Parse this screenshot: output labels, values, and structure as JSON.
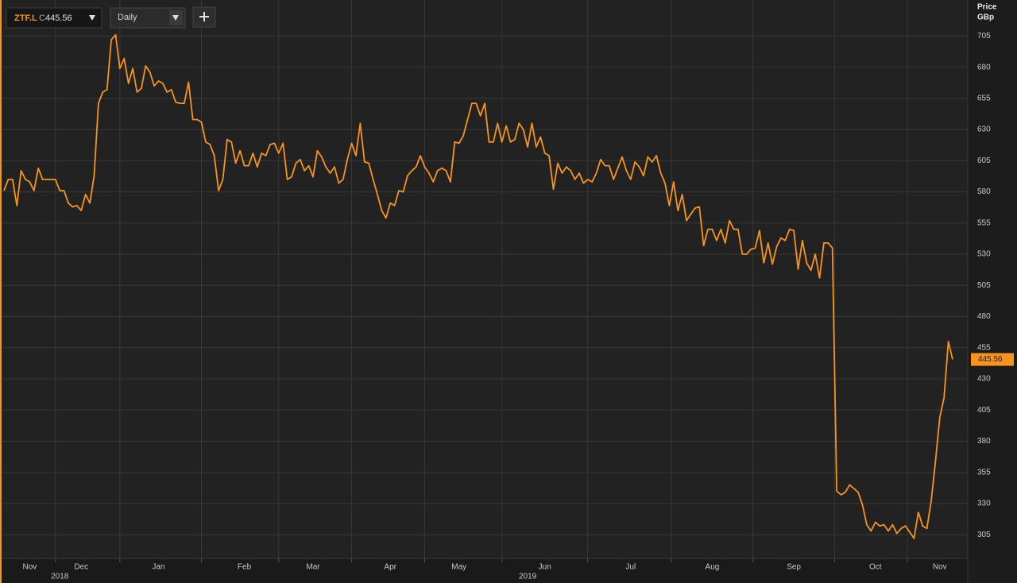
{
  "toolbar": {
    "close_label": "C",
    "interval": "Daily"
  },
  "chart_data": {
    "type": "line",
    "ylabel_lines": [
      "Price",
      "GBp"
    ],
    "categories": [
      null,
      null,
      null,
      null,
      null,
      null,
      "Nov",
      null,
      null,
      null,
      null,
      null,
      null,
      null,
      null,
      null,
      null,
      null,
      "Dec",
      null,
      null,
      null,
      null,
      null,
      null,
      null,
      null,
      null,
      null,
      null,
      null,
      null,
      null,
      null,
      null,
      null,
      "Jan",
      null,
      null,
      null,
      null,
      null,
      null,
      null,
      null,
      null,
      null,
      null,
      null,
      null,
      null,
      null,
      null,
      null,
      null,
      null,
      "Feb",
      null,
      null,
      null,
      null,
      null,
      null,
      null,
      null,
      null,
      null,
      null,
      null,
      null,
      null,
      null,
      "Mar",
      null,
      null,
      null,
      null,
      null,
      null,
      null,
      null,
      null,
      null,
      null,
      null,
      null,
      null,
      null,
      null,
      null,
      "Apr",
      null,
      null,
      null,
      null,
      null,
      null,
      null,
      null,
      null,
      null,
      null,
      null,
      null,
      null,
      null,
      "May",
      null,
      null,
      null,
      null,
      null,
      null,
      null,
      null,
      null,
      null,
      null,
      null,
      null,
      null,
      null,
      null,
      null,
      null,
      null,
      "Jun",
      null,
      null,
      null,
      null,
      null,
      null,
      null,
      null,
      null,
      null,
      null,
      null,
      null,
      null,
      null,
      null,
      null,
      null,
      null,
      "Jul",
      null,
      null,
      null,
      null,
      null,
      null,
      null,
      null,
      null,
      null,
      null,
      null,
      null,
      null,
      null,
      null,
      null,
      null,
      "Aug",
      null,
      null,
      null,
      null,
      null,
      null,
      null,
      null,
      null,
      null,
      null,
      null,
      null,
      null,
      null,
      null,
      null,
      null,
      "Sep",
      null,
      null,
      null,
      null,
      null,
      null,
      null,
      null,
      null,
      null,
      null,
      null,
      null,
      null,
      null,
      null,
      null,
      null,
      "Oct",
      null,
      null,
      null,
      null,
      null,
      null,
      null,
      null,
      null,
      null,
      null,
      null,
      null,
      null,
      "Nov",
      null,
      null,
      null
    ],
    "x_group_labels": [
      null,
      null,
      null,
      null,
      null,
      null,
      null,
      null,
      null,
      null,
      null,
      null,
      null,
      "2018",
      null,
      null,
      null,
      null,
      null,
      null,
      null,
      null,
      null,
      null,
      null,
      null,
      null,
      null,
      null,
      null,
      null,
      null,
      null,
      null,
      null,
      null,
      null,
      null,
      null,
      null,
      null,
      null,
      null,
      null,
      null,
      null,
      null,
      null,
      null,
      null,
      null,
      null,
      null,
      null,
      null,
      null,
      null,
      null,
      null,
      null,
      null,
      null,
      null,
      null,
      null,
      null,
      null,
      null,
      null,
      null,
      null,
      null,
      null,
      null,
      null,
      null,
      null,
      null,
      null,
      null,
      null,
      null,
      null,
      null,
      null,
      null,
      null,
      null,
      null,
      null,
      null,
      null,
      null,
      null,
      null,
      null,
      null,
      null,
      null,
      null,
      null,
      null,
      null,
      null,
      null,
      null,
      null,
      null,
      null,
      null,
      null,
      null,
      null,
      null,
      null,
      null,
      null,
      null,
      null,
      null,
      null,
      null,
      "2019",
      null,
      null,
      null,
      null,
      null,
      null,
      null,
      null,
      null,
      null,
      null,
      null,
      null,
      null,
      null,
      null,
      null,
      null,
      null,
      null,
      null,
      null,
      null,
      null,
      null,
      null,
      null,
      null,
      null,
      null,
      null,
      null,
      null,
      null,
      null,
      null,
      null,
      null,
      null,
      null,
      null,
      null,
      null,
      null,
      null,
      null,
      null,
      null,
      null,
      null,
      null,
      null,
      null,
      null,
      null,
      null,
      null,
      null,
      null,
      null,
      null,
      null,
      null,
      null,
      null,
      null,
      null,
      null,
      null,
      null,
      null,
      null,
      null,
      null,
      null,
      null,
      null,
      null,
      null,
      null,
      null,
      null,
      null,
      null,
      null,
      null,
      null,
      null,
      null,
      null,
      null,
      null,
      null,
      null,
      null,
      null,
      null,
      null,
      null
    ],
    "series": [
      {
        "name": "ZTF.L",
        "color": "#f7941d",
        "values": [
          581,
          590,
          590,
          569,
          597,
          590,
          588,
          581,
          599,
          590,
          590,
          590,
          590,
          581,
          581,
          571,
          568,
          569,
          565,
          578,
          571,
          593,
          651,
          660,
          662,
          702,
          706,
          679,
          687,
          667,
          679,
          660,
          663,
          681,
          676,
          665,
          669,
          667,
          660,
          662,
          652,
          651,
          651,
          668,
          638,
          638,
          636,
          620,
          618,
          609,
          581,
          590,
          622,
          620,
          603,
          613,
          601,
          601,
          611,
          600,
          611,
          609,
          618,
          619,
          611,
          619,
          590,
          592,
          603,
          606,
          597,
          601,
          592,
          613,
          608,
          600,
          595,
          600,
          587,
          590,
          606,
          619,
          609,
          635,
          604,
          603,
          590,
          578,
          565,
          559,
          571,
          569,
          581,
          580,
          593,
          597,
          600,
          609,
          600,
          595,
          588,
          597,
          599,
          597,
          588,
          620,
          619,
          625,
          638,
          651,
          651,
          641,
          651,
          620,
          620,
          635,
          620,
          633,
          620,
          622,
          635,
          630,
          616,
          635,
          616,
          624,
          611,
          609,
          582,
          603,
          595,
          600,
          597,
          590,
          595,
          587,
          590,
          588,
          595,
          606,
          601,
          601,
          590,
          599,
          608,
          597,
          590,
          604,
          600,
          593,
          608,
          604,
          609,
          595,
          587,
          569,
          588,
          565,
          578,
          557,
          562,
          567,
          568,
          537,
          550,
          550,
          541,
          550,
          539,
          557,
          550,
          550,
          530,
          530,
          534,
          535,
          549,
          523,
          539,
          522,
          536,
          543,
          541,
          550,
          549,
          518,
          541,
          523,
          517,
          530,
          511,
          539,
          539,
          535,
          340,
          337,
          339,
          345,
          342,
          339,
          329,
          313,
          308,
          315,
          312,
          313,
          308,
          313,
          306,
          310,
          312,
          307,
          302,
          323,
          312,
          310,
          332,
          364,
          399,
          415,
          460,
          445.56
        ]
      }
    ],
    "ylim": [
      286,
      732
    ],
    "yticks": [
      305,
      330,
      355,
      380,
      405,
      430,
      455,
      480,
      505,
      530,
      555,
      580,
      605,
      630,
      655,
      680,
      705
    ],
    "grid": true
  }
}
